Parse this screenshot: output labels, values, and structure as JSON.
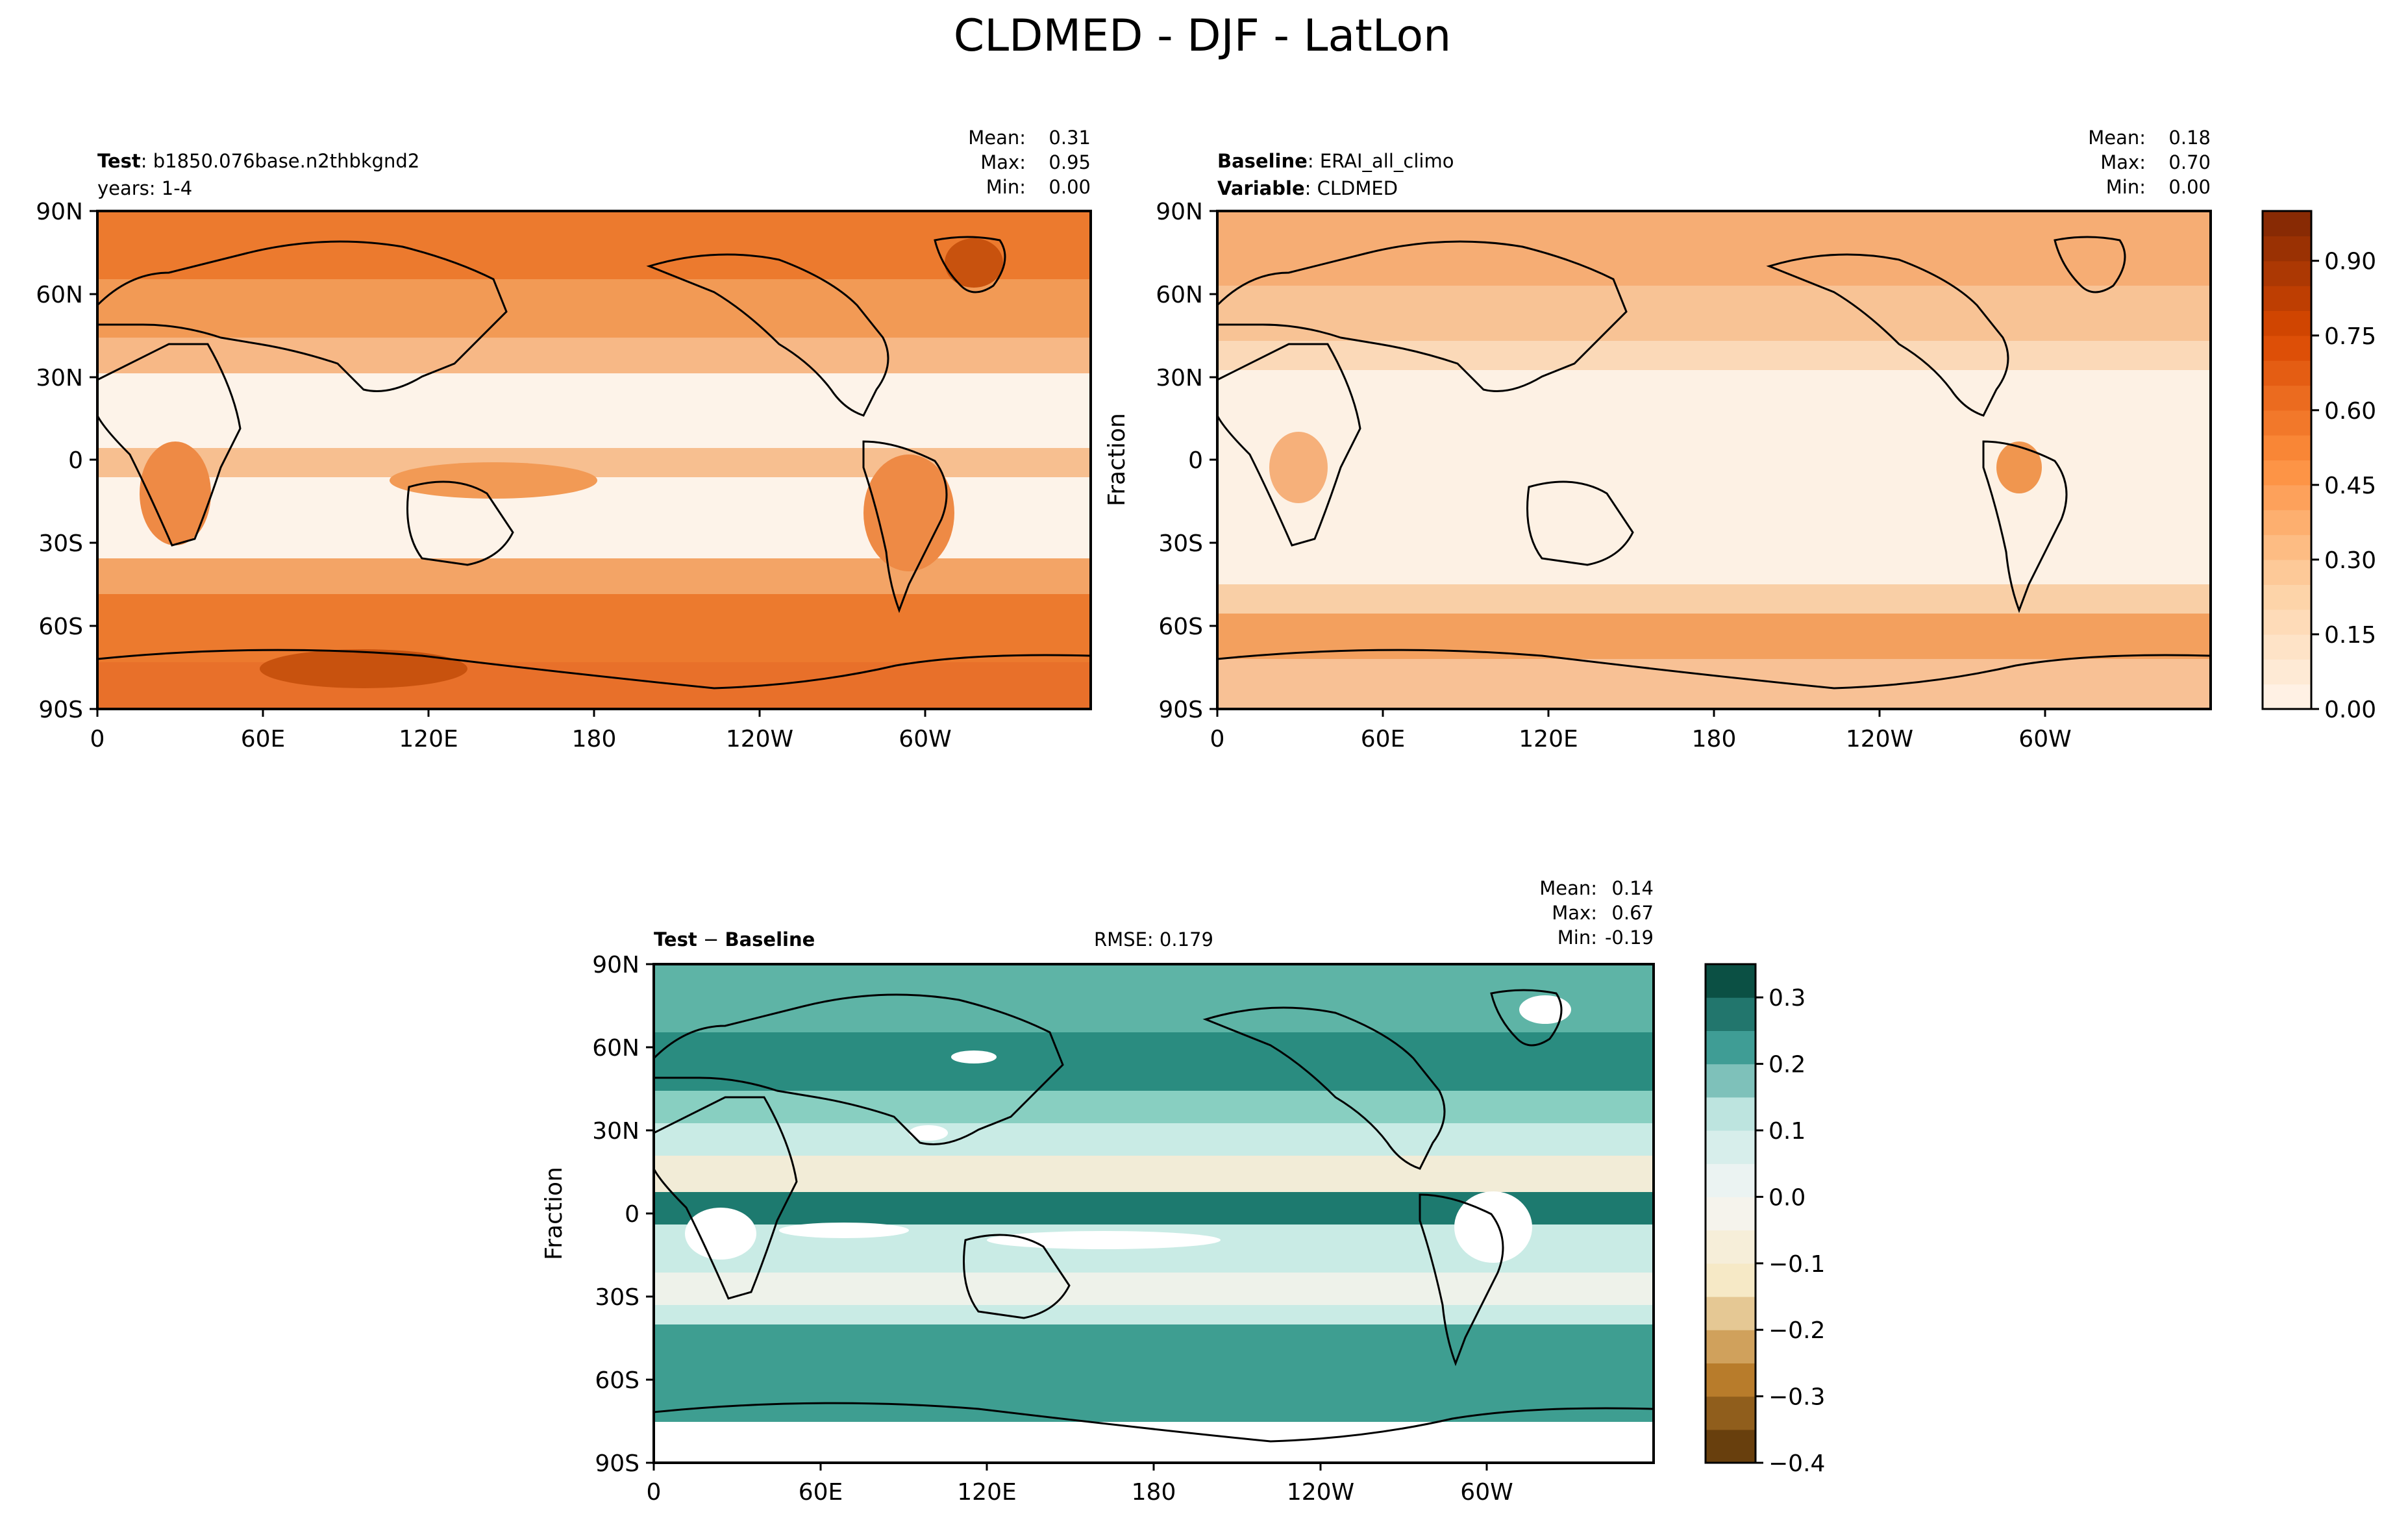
{
  "figure": {
    "title": "CLDMED - DJF - LatLon"
  },
  "chart_data": [
    {
      "type": "heatmap",
      "panel": "test",
      "header": {
        "bold": "Test",
        "value": "b1850.076base.n2thbkgnd2",
        "line2": "years: 1-4"
      },
      "stats": {
        "mean_label": "Mean:",
        "mean": "0.31",
        "max_label": "Max:",
        "max": "0.95",
        "min_label": "Min:",
        "min": "0.00"
      },
      "colormap": "Oranges",
      "x_ticks": [
        "0",
        "60E",
        "120E",
        "180",
        "120W",
        "60W"
      ],
      "y_ticks": [
        "90N",
        "60N",
        "30N",
        "0",
        "30S",
        "60S",
        "90S"
      ],
      "xlim": [
        0,
        360
      ],
      "ylim": [
        -90,
        90
      ],
      "mean": 0.31,
      "max": 0.95,
      "min": 0.0
    },
    {
      "type": "heatmap",
      "panel": "baseline",
      "header": {
        "bold": "Baseline",
        "value": "ERAI_all_climo",
        "bold2": "Variable",
        "value2": "CLDMED"
      },
      "stats": {
        "mean_label": "Mean:",
        "mean": "0.18",
        "max_label": "Max:",
        "max": "0.70",
        "min_label": "Min:",
        "min": "0.00"
      },
      "colormap": "Oranges",
      "ylabel": "Fraction",
      "x_ticks": [
        "0",
        "60E",
        "120E",
        "180",
        "120W",
        "60W"
      ],
      "y_ticks": [
        "90N",
        "60N",
        "30N",
        "0",
        "30S",
        "60S",
        "90S"
      ],
      "xlim": [
        0,
        360
      ],
      "ylim": [
        -90,
        90
      ],
      "mean": 0.18,
      "max": 0.7,
      "min": 0.0,
      "colorbar": {
        "ticks": [
          "0.00",
          "0.15",
          "0.30",
          "0.45",
          "0.60",
          "0.75",
          "0.90"
        ],
        "range": [
          0.0,
          1.0
        ],
        "levels": 20
      }
    },
    {
      "type": "heatmap",
      "panel": "difference",
      "header": {
        "bold": "Test",
        "operator": "−",
        "bold2": "Baseline",
        "rmse": "RMSE: 0.179"
      },
      "stats": {
        "mean_label": "Mean:",
        "mean": "0.14",
        "max_label": "Max:",
        "max": "0.67",
        "min_label": "Min:",
        "min": "-0.19"
      },
      "colormap": "BrBG",
      "ylabel": "Fraction",
      "x_ticks": [
        "0",
        "60E",
        "120E",
        "180",
        "120W",
        "60W"
      ],
      "y_ticks": [
        "90N",
        "60N",
        "30N",
        "0",
        "30S",
        "60S",
        "90S"
      ],
      "xlim": [
        0,
        360
      ],
      "ylim": [
        -90,
        90
      ],
      "mean": 0.14,
      "max": 0.67,
      "min": -0.19,
      "rmse": 0.179,
      "colorbar": {
        "ticks": [
          "0.3",
          "0.2",
          "0.1",
          "0.0",
          "−0.1",
          "−0.2",
          "−0.3",
          "−0.4"
        ],
        "range": [
          -0.4,
          0.35
        ],
        "levels": 15
      }
    }
  ]
}
